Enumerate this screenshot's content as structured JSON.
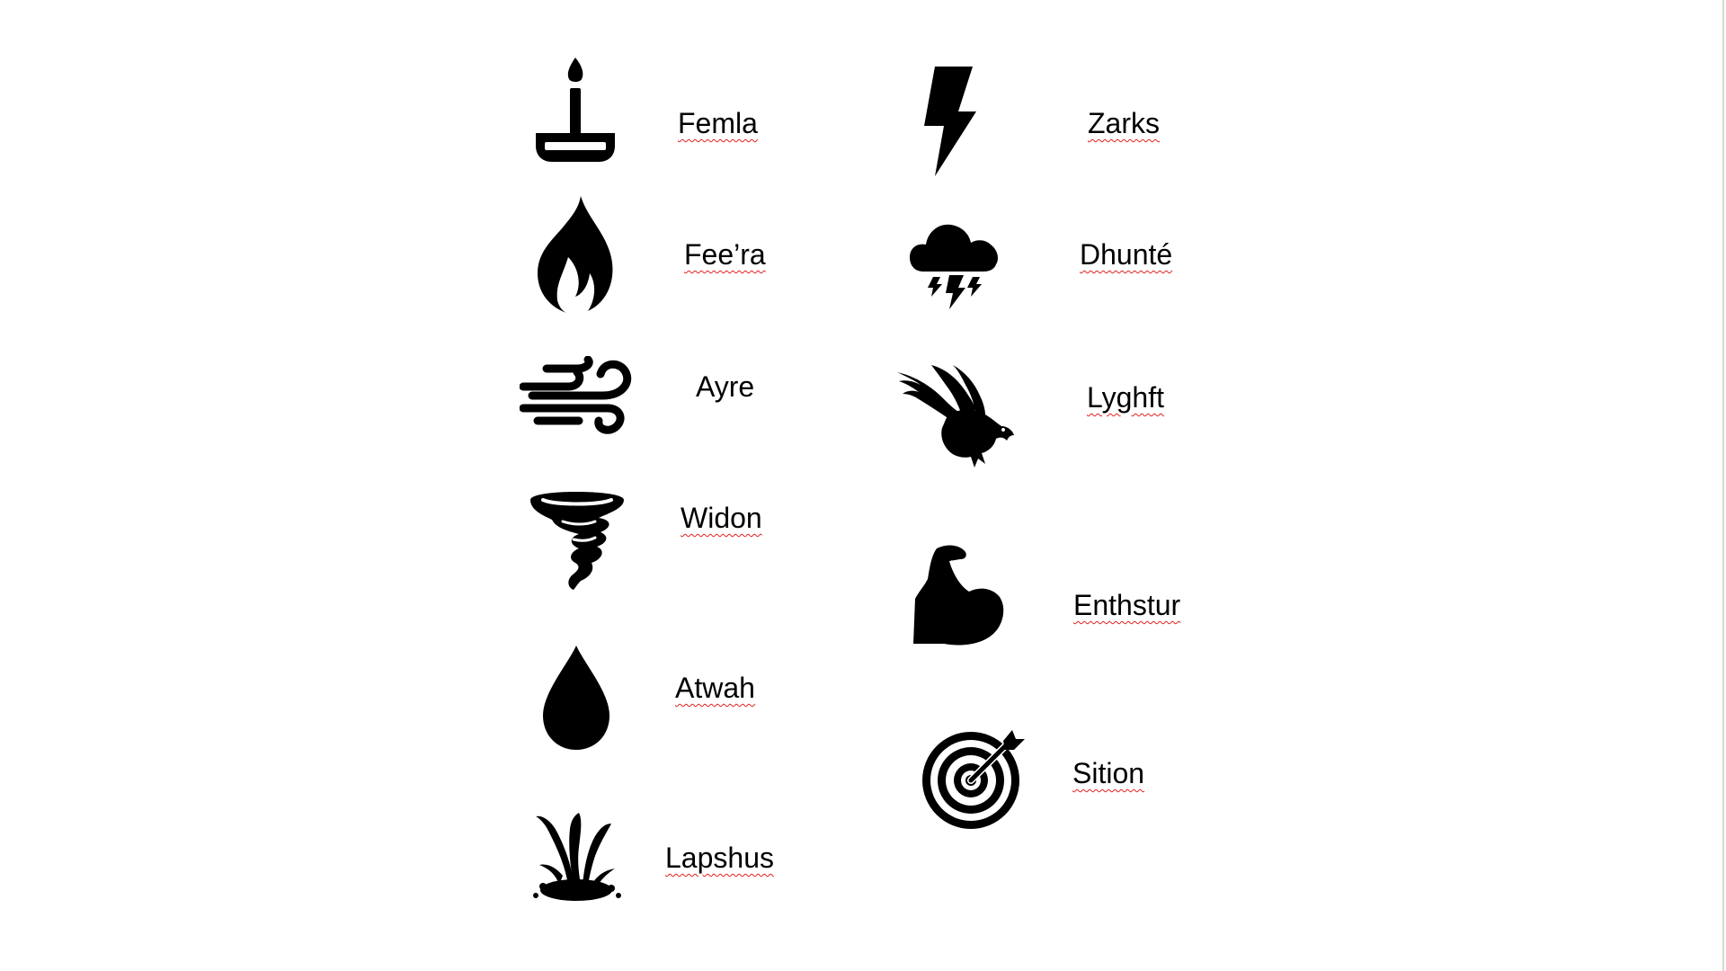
{
  "document": {
    "elements": [
      {
        "id": "femla",
        "label": "Femla",
        "icon": "candle-icon"
      },
      {
        "id": "feera",
        "label": "Fee’ra",
        "icon": "flame-icon"
      },
      {
        "id": "ayre",
        "label": "Ayre",
        "icon": "wind-icon"
      },
      {
        "id": "widon",
        "label": "Widon",
        "icon": "tornado-icon"
      },
      {
        "id": "atwah",
        "label": "Atwah",
        "icon": "water-drop-icon"
      },
      {
        "id": "lapshus",
        "label": "Lapshus",
        "icon": "splash-icon"
      },
      {
        "id": "zarks",
        "label": "Zarks",
        "icon": "lightning-bolt-icon"
      },
      {
        "id": "dhunte",
        "label": "Dhunté",
        "icon": "thunderstorm-cloud-icon"
      },
      {
        "id": "lyghft",
        "label": "Lyghft",
        "icon": "eagle-icon"
      },
      {
        "id": "enthstur",
        "label": "Enthstur",
        "icon": "flexed-bicep-icon"
      },
      {
        "id": "sition",
        "label": "Sition",
        "icon": "target-arrow-icon"
      }
    ],
    "spellcheck_underline_color": "#e02020",
    "ink_color": "#000000"
  }
}
